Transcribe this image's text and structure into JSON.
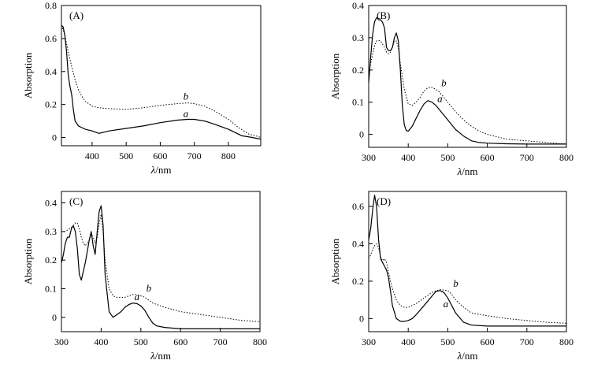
{
  "chart_data": [
    {
      "type": "line",
      "panel_label": "(A)",
      "xlabel_symbol": "λ",
      "xlabel_unit": "/nm",
      "ylabel": "Absorption",
      "xlim": [
        310,
        895
      ],
      "ylim": [
        -0.05,
        0.8
      ],
      "xticks": [
        400,
        500,
        600,
        700,
        800
      ],
      "yticks": [
        0,
        0.2,
        0.4,
        0.6,
        0.8
      ],
      "ytick_labels": [
        "0",
        "0.2",
        "0.4",
        "0.6",
        "0.8"
      ],
      "series": [
        {
          "name": "a",
          "style": "solid",
          "x": [
            310,
            315,
            320,
            325,
            330,
            335,
            340,
            345,
            350,
            360,
            370,
            380,
            400,
            420,
            450,
            500,
            550,
            600,
            650,
            680,
            700,
            730,
            760,
            800,
            840,
            870,
            895
          ],
          "y": [
            0.68,
            0.67,
            0.62,
            0.52,
            0.38,
            0.31,
            0.26,
            0.17,
            0.1,
            0.07,
            0.06,
            0.05,
            0.04,
            0.025,
            0.04,
            0.055,
            0.07,
            0.09,
            0.105,
            0.11,
            0.11,
            0.1,
            0.08,
            0.05,
            0.01,
            0.0,
            -0.01
          ]
        },
        {
          "name": "b",
          "style": "dotted",
          "x": [
            310,
            320,
            330,
            340,
            350,
            360,
            370,
            380,
            400,
            420,
            450,
            500,
            550,
            600,
            650,
            680,
            700,
            730,
            760,
            800,
            830,
            860,
            880,
            895
          ],
          "y": [
            0.68,
            0.62,
            0.52,
            0.43,
            0.35,
            0.29,
            0.25,
            0.22,
            0.19,
            0.18,
            0.175,
            0.17,
            0.18,
            0.195,
            0.205,
            0.21,
            0.205,
            0.19,
            0.16,
            0.11,
            0.06,
            0.02,
            0.01,
            0.0
          ]
        }
      ],
      "curve_labels": [
        {
          "text": "b",
          "x": 675,
          "y": 0.23
        },
        {
          "text": "a",
          "x": 675,
          "y": 0.125
        }
      ]
    },
    {
      "type": "line",
      "panel_label": "(B)",
      "xlabel_symbol": "λ",
      "xlabel_unit": "/nm",
      "ylabel": "Absorption",
      "xlim": [
        300,
        800
      ],
      "ylim": [
        -0.04,
        0.4
      ],
      "xticks": [
        300,
        400,
        500,
        600,
        700,
        800
      ],
      "yticks": [
        0,
        0.1,
        0.2,
        0.3,
        0.4
      ],
      "ytick_labels": [
        "0",
        "0.1",
        "0.2",
        "0.3",
        "0.4"
      ],
      "series": [
        {
          "name": "a",
          "style": "solid",
          "x": [
            300,
            305,
            310,
            315,
            320,
            325,
            330,
            335,
            340,
            345,
            350,
            355,
            360,
            365,
            370,
            375,
            380,
            385,
            390,
            395,
            400,
            410,
            420,
            430,
            440,
            450,
            460,
            470,
            480,
            500,
            520,
            540,
            560,
            580,
            600,
            650,
            700,
            750,
            800
          ],
          "y": [
            0.16,
            0.24,
            0.31,
            0.35,
            0.362,
            0.36,
            0.355,
            0.348,
            0.33,
            0.27,
            0.26,
            0.26,
            0.27,
            0.3,
            0.315,
            0.29,
            0.2,
            0.09,
            0.03,
            0.012,
            0.01,
            0.025,
            0.05,
            0.075,
            0.095,
            0.105,
            0.1,
            0.09,
            0.075,
            0.045,
            0.015,
            -0.005,
            -0.02,
            -0.025,
            -0.027,
            -0.029,
            -0.03,
            -0.03,
            -0.03
          ]
        },
        {
          "name": "b",
          "style": "dotted",
          "x": [
            300,
            305,
            310,
            315,
            320,
            325,
            330,
            335,
            340,
            345,
            350,
            355,
            360,
            365,
            370,
            375,
            380,
            390,
            400,
            410,
            420,
            430,
            440,
            450,
            460,
            470,
            480,
            500,
            520,
            540,
            560,
            580,
            600,
            650,
            700,
            750,
            800
          ],
          "y": [
            0.18,
            0.22,
            0.25,
            0.275,
            0.29,
            0.292,
            0.29,
            0.28,
            0.27,
            0.255,
            0.25,
            0.255,
            0.27,
            0.29,
            0.29,
            0.27,
            0.22,
            0.14,
            0.095,
            0.09,
            0.1,
            0.115,
            0.135,
            0.145,
            0.146,
            0.14,
            0.13,
            0.1,
            0.07,
            0.045,
            0.025,
            0.01,
            0.0,
            -0.015,
            -0.02,
            -0.025,
            -0.03
          ]
        }
      ],
      "curve_labels": [
        {
          "text": "b",
          "x": 490,
          "y": 0.15
        },
        {
          "text": "a",
          "x": 480,
          "y": 0.1
        }
      ]
    },
    {
      "type": "line",
      "panel_label": "(C)",
      "xlabel_symbol": "λ",
      "xlabel_unit": "/nm",
      "ylabel": "Absorption",
      "xlim": [
        300,
        800
      ],
      "ylim": [
        -0.05,
        0.44
      ],
      "xticks": [
        300,
        400,
        500,
        600,
        700,
        800
      ],
      "yticks": [
        0,
        0.1,
        0.2,
        0.3,
        0.4
      ],
      "ytick_labels": [
        "0",
        "0.1",
        "0.2",
        "0.3",
        "0.4"
      ],
      "series": [
        {
          "name": "a",
          "style": "solid",
          "x": [
            300,
            305,
            310,
            315,
            320,
            325,
            330,
            335,
            340,
            345,
            350,
            355,
            360,
            365,
            370,
            375,
            380,
            385,
            390,
            395,
            400,
            405,
            410,
            420,
            430,
            440,
            450,
            460,
            470,
            480,
            490,
            500,
            510,
            520,
            530,
            540,
            560,
            600,
            650,
            700,
            750,
            800
          ],
          "y": [
            0.19,
            0.22,
            0.26,
            0.28,
            0.28,
            0.31,
            0.32,
            0.3,
            0.24,
            0.15,
            0.13,
            0.16,
            0.19,
            0.23,
            0.27,
            0.3,
            0.25,
            0.22,
            0.3,
            0.37,
            0.39,
            0.32,
            0.15,
            0.02,
            0.0,
            0.01,
            0.02,
            0.035,
            0.045,
            0.05,
            0.048,
            0.04,
            0.025,
            0.0,
            -0.02,
            -0.03,
            -0.035,
            -0.04,
            -0.04,
            -0.04,
            -0.04,
            -0.04
          ]
        },
        {
          "name": "b",
          "style": "dotted",
          "x": [
            300,
            310,
            320,
            330,
            335,
            340,
            345,
            350,
            355,
            360,
            370,
            375,
            380,
            385,
            390,
            395,
            400,
            405,
            410,
            420,
            430,
            440,
            450,
            460,
            470,
            480,
            490,
            500,
            510,
            520,
            530,
            540,
            560,
            600,
            650,
            700,
            750,
            800
          ],
          "y": [
            0.3,
            0.3,
            0.31,
            0.32,
            0.33,
            0.33,
            0.31,
            0.28,
            0.26,
            0.25,
            0.27,
            0.29,
            0.28,
            0.26,
            0.28,
            0.33,
            0.36,
            0.3,
            0.2,
            0.1,
            0.075,
            0.07,
            0.07,
            0.07,
            0.075,
            0.08,
            0.08,
            0.075,
            0.07,
            0.06,
            0.05,
            0.045,
            0.035,
            0.02,
            0.01,
            0.0,
            -0.01,
            -0.015
          ]
        }
      ],
      "curve_labels": [
        {
          "text": "b",
          "x": 520,
          "y": 0.09
        },
        {
          "text": "a",
          "x": 490,
          "y": 0.06
        }
      ]
    },
    {
      "type": "line",
      "panel_label": "(D)",
      "xlabel_symbol": "λ",
      "xlabel_unit": "/nm",
      "ylabel": "Absorption",
      "xlim": [
        300,
        800
      ],
      "ylim": [
        -0.07,
        0.68
      ],
      "xticks": [
        300,
        400,
        500,
        600,
        700,
        800
      ],
      "yticks": [
        0,
        0.2,
        0.4,
        0.6
      ],
      "ytick_labels": [
        "0",
        "0.2",
        "0.4",
        "0.6"
      ],
      "series": [
        {
          "name": "a",
          "style": "solid",
          "x": [
            300,
            305,
            310,
            315,
            320,
            325,
            330,
            335,
            340,
            345,
            350,
            355,
            360,
            370,
            380,
            390,
            400,
            410,
            420,
            440,
            460,
            470,
            480,
            490,
            500,
            510,
            520,
            540,
            560,
            600,
            650,
            700,
            750,
            800
          ],
          "y": [
            0.42,
            0.48,
            0.58,
            0.66,
            0.6,
            0.42,
            0.32,
            0.3,
            0.28,
            0.26,
            0.22,
            0.15,
            0.07,
            0.0,
            -0.015,
            -0.015,
            -0.01,
            0.0,
            0.02,
            0.07,
            0.12,
            0.145,
            0.15,
            0.14,
            0.11,
            0.07,
            0.03,
            -0.02,
            -0.035,
            -0.04,
            -0.04,
            -0.04,
            -0.04,
            -0.04
          ]
        },
        {
          "name": "b",
          "style": "dotted",
          "x": [
            300,
            305,
            310,
            315,
            320,
            325,
            330,
            335,
            340,
            345,
            350,
            355,
            360,
            370,
            380,
            390,
            400,
            420,
            440,
            460,
            480,
            500,
            510,
            520,
            540,
            560,
            600,
            650,
            700,
            750,
            800
          ],
          "y": [
            0.32,
            0.34,
            0.37,
            0.39,
            0.4,
            0.38,
            0.33,
            0.31,
            0.32,
            0.3,
            0.25,
            0.2,
            0.16,
            0.1,
            0.07,
            0.06,
            0.06,
            0.08,
            0.11,
            0.14,
            0.155,
            0.15,
            0.13,
            0.1,
            0.06,
            0.03,
            0.015,
            0.0,
            -0.01,
            -0.02,
            -0.025
          ]
        }
      ],
      "curve_labels": [
        {
          "text": "b",
          "x": 520,
          "y": 0.17
        },
        {
          "text": "a",
          "x": 495,
          "y": 0.06
        }
      ]
    }
  ]
}
